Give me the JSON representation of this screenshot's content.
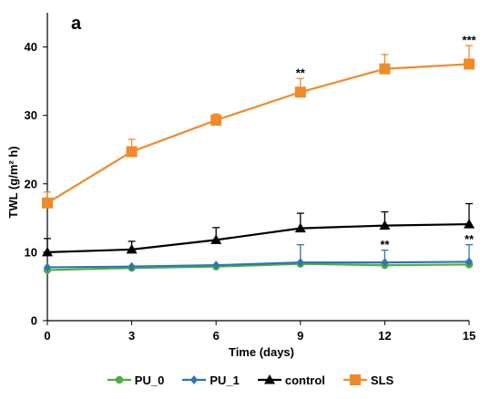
{
  "chart_data": {
    "type": "line",
    "panel_label": "a",
    "xlabel": "Time (days)",
    "ylabel": "TWL (g/m² h)",
    "x": [
      0,
      3,
      6,
      9,
      12,
      15
    ],
    "xlim": [
      0,
      15
    ],
    "ylim": [
      0,
      45
    ],
    "xticks": [
      0,
      3,
      6,
      9,
      12,
      15
    ],
    "yticks": [
      0,
      10,
      20,
      30,
      40
    ],
    "grid": false,
    "legend_position": "bottom",
    "series": [
      {
        "name": "PU_0",
        "color": "#4CAF3E",
        "marker": "circle",
        "values": [
          7.4,
          7.7,
          7.9,
          8.3,
          8.1,
          8.2
        ],
        "error": [
          0,
          0,
          0,
          0,
          0,
          0
        ]
      },
      {
        "name": "PU_1",
        "color": "#2E75B6",
        "marker": "diamond",
        "values": [
          7.8,
          7.9,
          8.1,
          8.5,
          8.5,
          8.6
        ],
        "error": [
          0,
          0,
          0,
          2.6,
          1.8,
          2.5
        ]
      },
      {
        "name": "control",
        "color": "#000000",
        "marker": "triangle",
        "values": [
          10.0,
          10.4,
          11.8,
          13.5,
          13.9,
          14.1
        ],
        "error": [
          2.0,
          1.2,
          1.8,
          2.2,
          2.0,
          3.0
        ]
      },
      {
        "name": "SLS",
        "color": "#F08A28",
        "marker": "square",
        "values": [
          17.2,
          24.7,
          29.3,
          33.4,
          36.8,
          37.5
        ],
        "error": [
          1.6,
          1.8,
          0.9,
          2.0,
          2.1,
          2.7
        ]
      }
    ],
    "annotations": [
      {
        "text": "**",
        "x": 9,
        "y": 35.6
      },
      {
        "text": "***",
        "x": 15,
        "y": 40.4
      },
      {
        "text": "**",
        "x": 12,
        "y": 10.5
      },
      {
        "text": "**",
        "x": 15,
        "y": 11.3
      }
    ]
  }
}
